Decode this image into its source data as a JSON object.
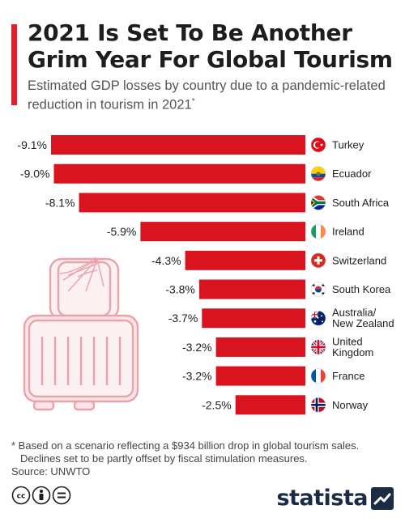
{
  "title": "2021 Is Set To Be Another Grim Year For Global Tourism",
  "subtitle": "Estimated GDP losses by country due to a pandemic-related reduction in tourism in 2021",
  "subtitle_mark": "*",
  "colors": {
    "accent": "#e31e2d",
    "bar": "#d9141e",
    "text": "#1d1d1b"
  },
  "chart_data": {
    "type": "bar",
    "orientation": "horizontal",
    "categories": [
      "Turkey",
      "Ecuador",
      "South Africa",
      "Ireland",
      "Switzerland",
      "South Korea",
      "Australia/New Zealand",
      "United Kingdom",
      "France",
      "Norway"
    ],
    "values": [
      -9.1,
      -9.0,
      -8.1,
      -5.9,
      -4.3,
      -3.8,
      -3.7,
      -3.2,
      -3.2,
      -2.5
    ],
    "data_labels": [
      "-9.1%",
      "-9.0%",
      "-8.1%",
      "-5.9%",
      "-4.3%",
      "-3.8%",
      "-3.7%",
      "-3.2%",
      "-3.2%",
      "-2.5%"
    ],
    "category_label_lines": [
      [
        "Turkey"
      ],
      [
        "Ecuador"
      ],
      [
        "South Africa"
      ],
      [
        "Ireland"
      ],
      [
        "Switzerland"
      ],
      [
        "South Korea"
      ],
      [
        "Australia/",
        "New Zealand"
      ],
      [
        "United",
        "Kingdom"
      ],
      [
        "France"
      ],
      [
        "Norway"
      ]
    ],
    "flags": [
      "flag-turkey-icon",
      "flag-ecuador-icon",
      "flag-south-africa-icon",
      "flag-ireland-icon",
      "flag-switzerland-icon",
      "flag-south-korea-icon",
      "flag-australia-icon",
      "flag-uk-icon",
      "flag-france-icon",
      "flag-norway-icon"
    ],
    "unit": "%",
    "xlim": [
      -9.1,
      0
    ],
    "title": "",
    "xlabel": "",
    "ylabel": "",
    "grid": false,
    "legend": "none"
  },
  "illustration": "suitcase-with-cobweb-icon",
  "footnote": {
    "line1": "* Based on a scenario reflecting a $934 billion drop in global tourism sales.",
    "line2": "Declines set to be partly offset by fiscal stimulation measures."
  },
  "source": "Source: UNWTO",
  "license_icons": [
    "cc-icon",
    "by-icon",
    "nd-icon"
  ],
  "brand": {
    "name": "statista",
    "icon": "statista-logo-icon"
  }
}
